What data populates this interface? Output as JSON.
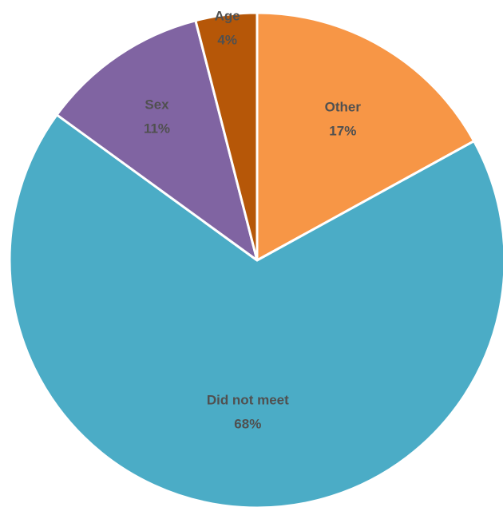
{
  "chart_data": {
    "type": "pie",
    "title": "",
    "start_angle_deg": 0,
    "direction": "clockwise",
    "slices": [
      {
        "label": "Other",
        "value": 17,
        "value_label": "17%",
        "color": "#F79646"
      },
      {
        "label": "Did not meet",
        "value": 68,
        "value_label": "68%",
        "color": "#4BACC6"
      },
      {
        "label": "Sex",
        "value": 11,
        "value_label": "11%",
        "color": "#8064A2"
      },
      {
        "label": "Age",
        "value": 4,
        "value_label": "4%",
        "color": "#B65708"
      }
    ],
    "border_color": "#FFFFFF",
    "legend": "none",
    "data_labels": "category name and percentage"
  }
}
